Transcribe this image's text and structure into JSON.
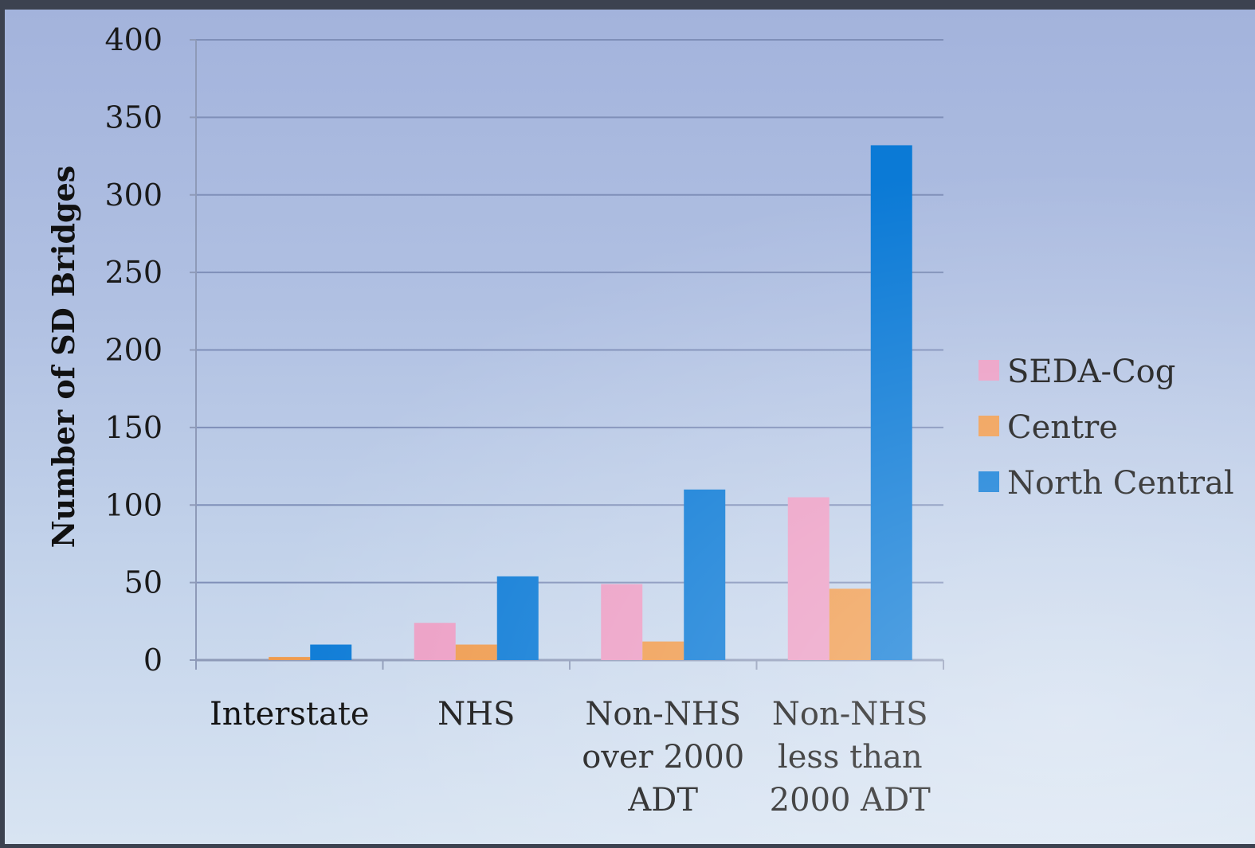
{
  "chart_data": {
    "type": "bar",
    "title": "",
    "xlabel": "",
    "ylabel": "Number of SD Bridges",
    "ylim": [
      0,
      400
    ],
    "yticks": [
      0,
      50,
      100,
      150,
      200,
      250,
      300,
      350,
      400
    ],
    "grid": true,
    "legend_position": "right",
    "categories": [
      [
        "Interstate"
      ],
      [
        "NHS"
      ],
      [
        "Non-NHS",
        "over 2000",
        "ADT"
      ],
      [
        "Non-NHS",
        "less than",
        "2000 ADT"
      ]
    ],
    "series": [
      {
        "name": "SEDA-Cog",
        "color": "#ec9dc4",
        "values": [
          0,
          24,
          49,
          105
        ]
      },
      {
        "name": "Centre",
        "color": "#ef9a4c",
        "values": [
          2,
          10,
          12,
          46
        ]
      },
      {
        "name": "North Central",
        "color": "#0b7ad6",
        "values": [
          10,
          54,
          110,
          332
        ]
      }
    ]
  }
}
